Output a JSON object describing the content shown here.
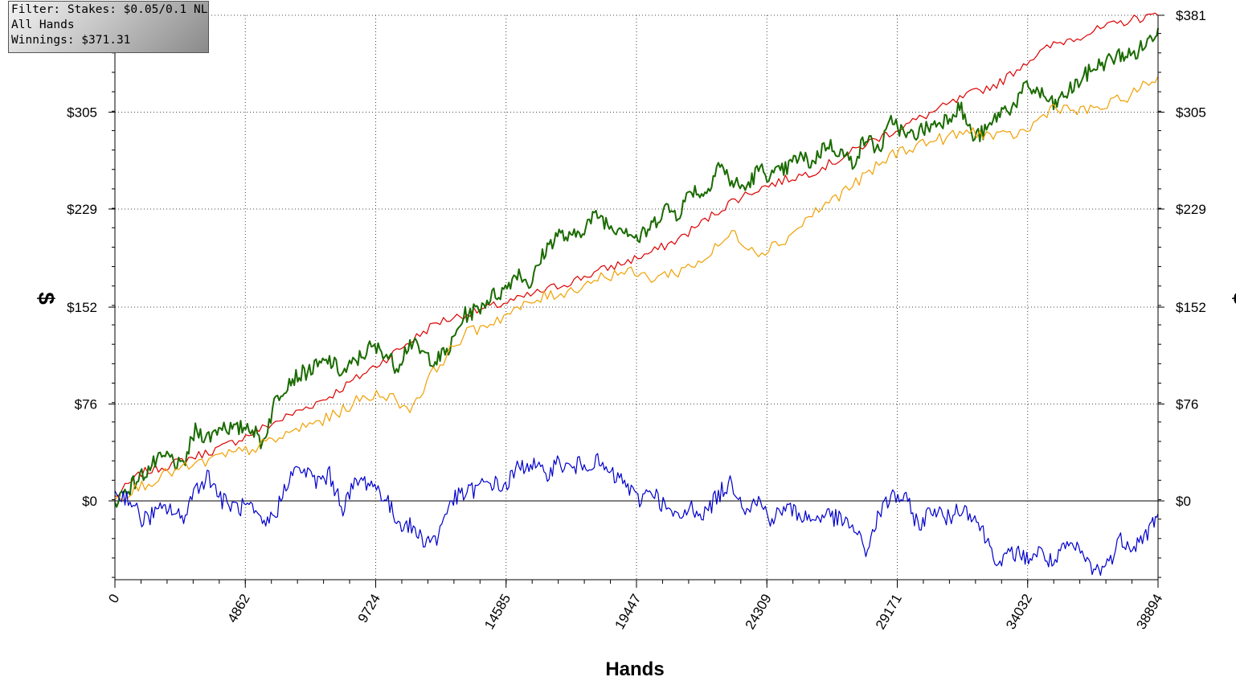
{
  "info_box": {
    "filter": "Filter: Stakes: $0.05/0.1 NL",
    "hands_label": "All Hands",
    "winnings": "Winnings: $371.31"
  },
  "chart_data": {
    "type": "line",
    "xlabel": "Hands",
    "ylabel": "$",
    "xlim": [
      0,
      38894
    ],
    "ylim": [
      -60,
      381
    ],
    "x_ticks": [
      "0",
      "4862",
      "9724",
      "14585",
      "19447",
      "24309",
      "29171",
      "34032",
      "38894"
    ],
    "x_tick_values": [
      0,
      4862,
      9724,
      14585,
      19447,
      24309,
      29171,
      34032,
      38894
    ],
    "y_ticks": [
      "$0",
      "$76",
      "$152",
      "$229",
      "$305",
      "$381"
    ],
    "y_tick_values": [
      0,
      76,
      152,
      229,
      305,
      381
    ],
    "y_tick_labels_right": [
      "$0",
      "$76",
      "$152",
      "$229",
      "$305",
      "$381"
    ],
    "grid": true,
    "series": [
      {
        "color": "#dd0000",
        "x": [
          0,
          1000,
          2000,
          3000,
          4000,
          5000,
          6000,
          7000,
          8000,
          9000,
          10000,
          11000,
          12000,
          13000,
          14000,
          15000,
          16000,
          17000,
          18000,
          19000,
          20000,
          21000,
          22000,
          23000,
          24000,
          25000,
          26000,
          27000,
          28000,
          29000,
          30000,
          31000,
          32000,
          33000,
          34000,
          35000,
          36000,
          37000,
          38000,
          38894
        ],
        "y": [
          3,
          22,
          28,
          35,
          42,
          52,
          62,
          72,
          82,
          96,
          110,
          125,
          140,
          146,
          152,
          158,
          165,
          172,
          180,
          187,
          195,
          205,
          220,
          235,
          245,
          252,
          258,
          268,
          280,
          290,
          300,
          310,
          320,
          328,
          345,
          358,
          365,
          372,
          378,
          381
        ]
      },
      {
        "color": "#1a6b00",
        "x": [
          0,
          500,
          1000,
          1500,
          2000,
          2500,
          3000,
          3500,
          4000,
          4500,
          5000,
          5500,
          6000,
          6500,
          7000,
          7500,
          8000,
          8500,
          9000,
          9500,
          10000,
          10500,
          11000,
          11500,
          12000,
          12500,
          13000,
          13500,
          14000,
          14500,
          15000,
          15500,
          16000,
          16500,
          17000,
          17500,
          18000,
          18500,
          19000,
          19500,
          20000,
          20500,
          21000,
          21500,
          22000,
          22500,
          23000,
          23500,
          24000,
          24500,
          25000,
          25500,
          26000,
          26500,
          27000,
          27500,
          28000,
          28500,
          29000,
          29500,
          30000,
          30500,
          31000,
          31500,
          32000,
          32500,
          33000,
          33500,
          34000,
          34500,
          35000,
          35500,
          36000,
          36500,
          37000,
          37500,
          38000,
          38500,
          38894
        ],
        "y": [
          0,
          10,
          20,
          30,
          35,
          25,
          55,
          50,
          60,
          55,
          60,
          45,
          80,
          95,
          100,
          105,
          110,
          100,
          110,
          120,
          118,
          105,
          125,
          115,
          110,
          120,
          145,
          150,
          160,
          165,
          180,
          170,
          195,
          210,
          205,
          215,
          225,
          215,
          215,
          205,
          215,
          230,
          225,
          245,
          240,
          265,
          250,
          245,
          260,
          255,
          260,
          270,
          265,
          280,
          275,
          265,
          285,
          275,
          300,
          285,
          290,
          295,
          300,
          310,
          285,
          290,
          305,
          310,
          325,
          320,
          310,
          320,
          330,
          340,
          345,
          350,
          350,
          360,
          371
        ]
      },
      {
        "color": "#f0a000",
        "x": [
          0,
          1000,
          2000,
          3000,
          4000,
          5000,
          6000,
          7000,
          8000,
          9000,
          10000,
          11000,
          12000,
          13000,
          14000,
          15000,
          16000,
          17000,
          18000,
          19000,
          20000,
          21000,
          22000,
          23000,
          24000,
          25000,
          26000,
          27000,
          28000,
          29000,
          30000,
          31000,
          32000,
          33000,
          34000,
          35000,
          36000,
          37000,
          38000,
          38894
        ],
        "y": [
          2,
          12,
          22,
          28,
          35,
          40,
          48,
          58,
          65,
          78,
          85,
          72,
          105,
          130,
          140,
          150,
          160,
          165,
          175,
          180,
          175,
          180,
          190,
          210,
          195,
          205,
          225,
          240,
          255,
          272,
          280,
          285,
          290,
          285,
          290,
          310,
          305,
          310,
          320,
          333
        ]
      },
      {
        "color": "#0000cc",
        "x": [
          0,
          500,
          1000,
          1500,
          2000,
          2500,
          3000,
          3500,
          4000,
          4500,
          5000,
          5500,
          6000,
          6500,
          7000,
          7500,
          8000,
          8500,
          9000,
          9500,
          10000,
          10500,
          11000,
          11500,
          12000,
          12500,
          13000,
          13500,
          14000,
          14500,
          15000,
          15500,
          16000,
          16500,
          17000,
          17500,
          18000,
          18500,
          19000,
          19500,
          20000,
          20500,
          21000,
          21500,
          22000,
          22500,
          23000,
          23500,
          24000,
          24500,
          25000,
          25500,
          26000,
          26500,
          27000,
          27500,
          28000,
          28500,
          29000,
          29500,
          30000,
          30500,
          31000,
          31500,
          32000,
          32500,
          33000,
          33500,
          34000,
          34500,
          35000,
          35500,
          36000,
          36500,
          37000,
          37500,
          38000,
          38500,
          38894
        ],
        "y": [
          5,
          3,
          -15,
          -10,
          -5,
          -15,
          10,
          20,
          0,
          -5,
          -5,
          -20,
          -10,
          20,
          25,
          15,
          20,
          -5,
          15,
          15,
          5,
          -15,
          -20,
          -30,
          -30,
          0,
          5,
          10,
          15,
          10,
          25,
          30,
          20,
          30,
          25,
          30,
          30,
          20,
          15,
          0,
          10,
          -5,
          -15,
          -5,
          -10,
          5,
          15,
          -5,
          0,
          -15,
          -5,
          -10,
          -15,
          -10,
          -15,
          -20,
          -40,
          -10,
          5,
          0,
          -20,
          -5,
          -15,
          -5,
          -10,
          -30,
          -50,
          -40,
          -45,
          -40,
          -50,
          -35,
          -40,
          -55,
          -50,
          -30,
          -35,
          -25,
          -10
        ]
      }
    ]
  }
}
